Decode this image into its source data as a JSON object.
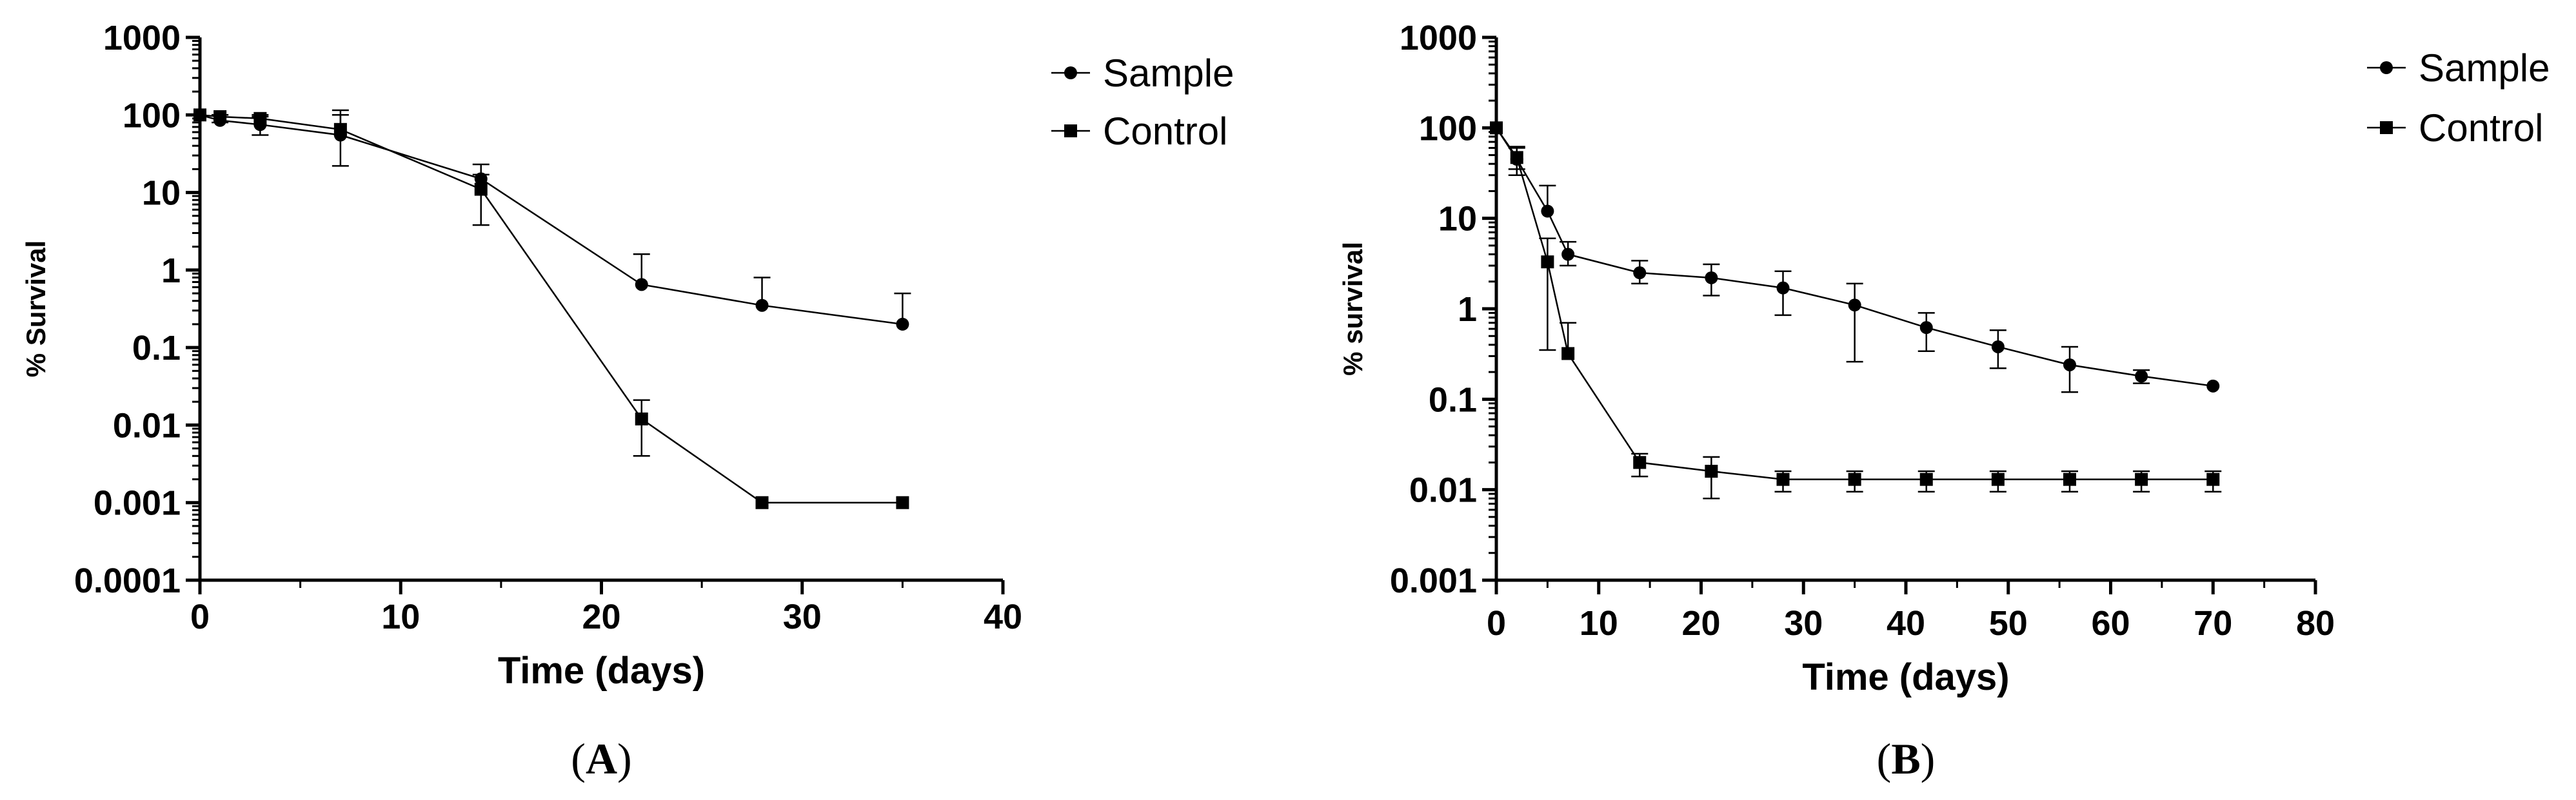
{
  "chart_data": [
    {
      "type": "line",
      "panel_label": "A",
      "xlabel": "Time (days)",
      "ylabel": "% Survival",
      "yscale": "log",
      "xlim": [
        0,
        40
      ],
      "ylim": [
        0.0001,
        1000
      ],
      "x_ticks": [
        "0",
        "10",
        "20",
        "30",
        "40"
      ],
      "y_ticks": [
        "1000",
        "100",
        "10",
        "1",
        "0.1",
        "0.01",
        "0.001",
        "0.0001"
      ],
      "legend": [
        "Sample",
        "Control"
      ],
      "series": [
        {
          "name": "Sample",
          "marker": "circle",
          "x": [
            0,
            1,
            3,
            7,
            14,
            22,
            28,
            35
          ],
          "y": [
            100,
            85,
            75,
            55,
            15,
            0.65,
            0.35,
            0.2
          ],
          "err_upper": [
            100,
            100,
            95,
            100,
            23,
            1.6,
            0.8,
            0.5
          ]
        },
        {
          "name": "Control",
          "marker": "square",
          "x": [
            0,
            1,
            3,
            7,
            14,
            22,
            28,
            35
          ],
          "y": [
            100,
            95,
            90,
            65,
            11,
            0.012,
            0.001,
            0.001
          ],
          "err_upper": [
            100,
            100,
            100,
            115,
            17,
            0.021,
            0.001,
            0.001
          ],
          "err_lower": [
            100,
            80,
            55,
            22,
            3.8,
            0.004,
            0.001,
            0.001
          ]
        }
      ]
    },
    {
      "type": "line",
      "panel_label": "B",
      "xlabel": "Time (days)",
      "ylabel": "% survival",
      "yscale": "log",
      "xlim": [
        0,
        80
      ],
      "ylim": [
        0.001,
        1000
      ],
      "x_ticks": [
        "0",
        "10",
        "20",
        "30",
        "40",
        "50",
        "60",
        "70",
        "80"
      ],
      "y_ticks": [
        "1000",
        "100",
        "10",
        "1",
        "0.1",
        "0.01",
        "0.001"
      ],
      "legend": [
        "Sample",
        "Control"
      ],
      "series": [
        {
          "name": "Sample",
          "marker": "circle",
          "x": [
            0,
            2,
            5,
            7,
            14,
            21,
            28,
            35,
            42,
            49,
            56,
            63,
            70
          ],
          "y": [
            100,
            45,
            12,
            4,
            2.5,
            2.2,
            1.7,
            1.1,
            0.62,
            0.38,
            0.24,
            0.18,
            0.14
          ],
          "err_upper": [
            100,
            60,
            23,
            5.5,
            3.4,
            3.1,
            2.6,
            1.9,
            0.9,
            0.58,
            0.38,
            0.21,
            0.14
          ],
          "err_lower": [
            100,
            35,
            12,
            3,
            1.9,
            1.4,
            0.85,
            0.26,
            0.34,
            0.22,
            0.12,
            0.15,
            0.14
          ]
        },
        {
          "name": "Control",
          "marker": "square",
          "x": [
            0,
            2,
            5,
            7,
            14,
            21,
            28,
            35,
            42,
            49,
            56,
            63,
            70
          ],
          "y": [
            100,
            47,
            3.3,
            0.32,
            0.02,
            0.016,
            0.013,
            0.013,
            0.013,
            0.013,
            0.013,
            0.013,
            0.013
          ],
          "err_upper": [
            100,
            62,
            6,
            0.7,
            0.025,
            0.023,
            0.016,
            0.016,
            0.016,
            0.016,
            0.016,
            0.016,
            0.016
          ],
          "err_lower": [
            100,
            30,
            0.35,
            0.32,
            0.014,
            0.008,
            0.0095,
            0.0095,
            0.0095,
            0.0095,
            0.0095,
            0.0095,
            0.0095
          ]
        }
      ]
    }
  ]
}
